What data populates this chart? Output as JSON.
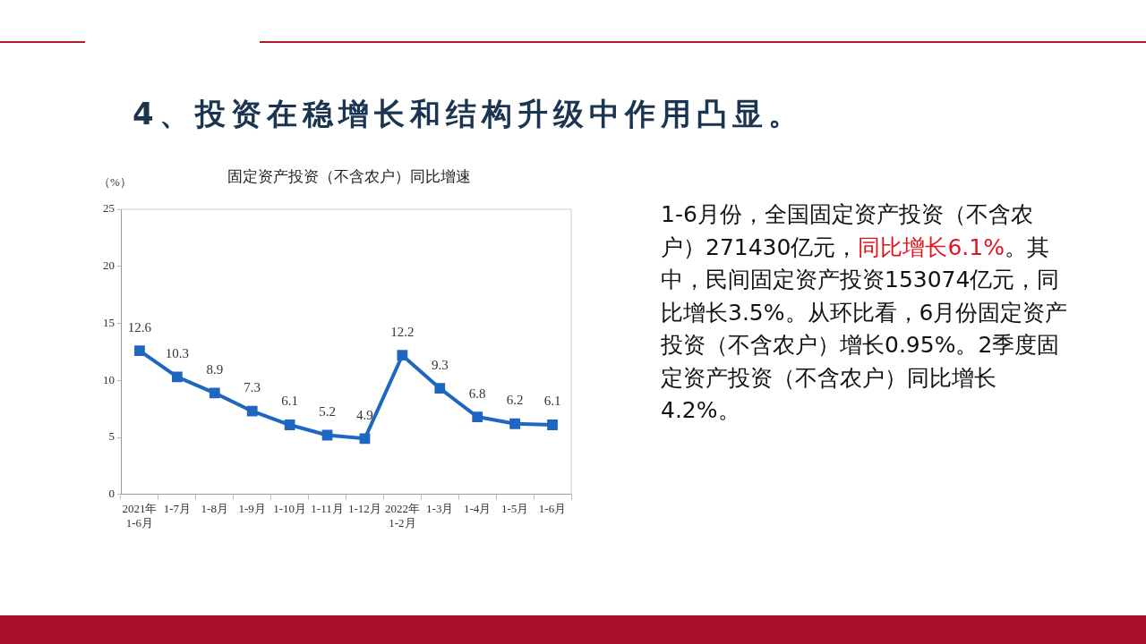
{
  "chart_data": {
    "type": "line",
    "title": "4、投资在稳增长和结构升级中作用凸显。",
    "subtitle": "固定资产投资（不含农户）同比增速",
    "ylabel": "（%）",
    "categories": [
      "2021年\n1-6月",
      "1-7月",
      "1-8月",
      "1-9月",
      "1-10月",
      "1-11月",
      "1-12月",
      "2022年\n1-2月",
      "1-3月",
      "1-4月",
      "1-5月",
      "1-6月"
    ],
    "series": [
      {
        "color": "#1f66c0",
        "values": [
          12.6,
          10.3,
          8.9,
          7.3,
          6.1,
          5.2,
          4.9,
          12.2,
          9.3,
          6.8,
          6.2,
          6.1
        ]
      }
    ],
    "ylim": [
      0,
      25
    ],
    "yticks": [
      0,
      5,
      10,
      15,
      20,
      25
    ],
    "grid": false,
    "legend": false,
    "marker": "square",
    "line_style": "solid",
    "data_labels": true,
    "annotations": [
      "1-6月份，全国固定资产投资（不含农户）271430亿元，",
      "同比增长6.1%",
      "。其中，民间固定资产投资153074亿元，同比增长3.5%。从环比看，6月份固定资产投资（不含农户）增长0.95%。2季度固定资产投资（不含农户）同比增长4.2%。"
    ]
  }
}
